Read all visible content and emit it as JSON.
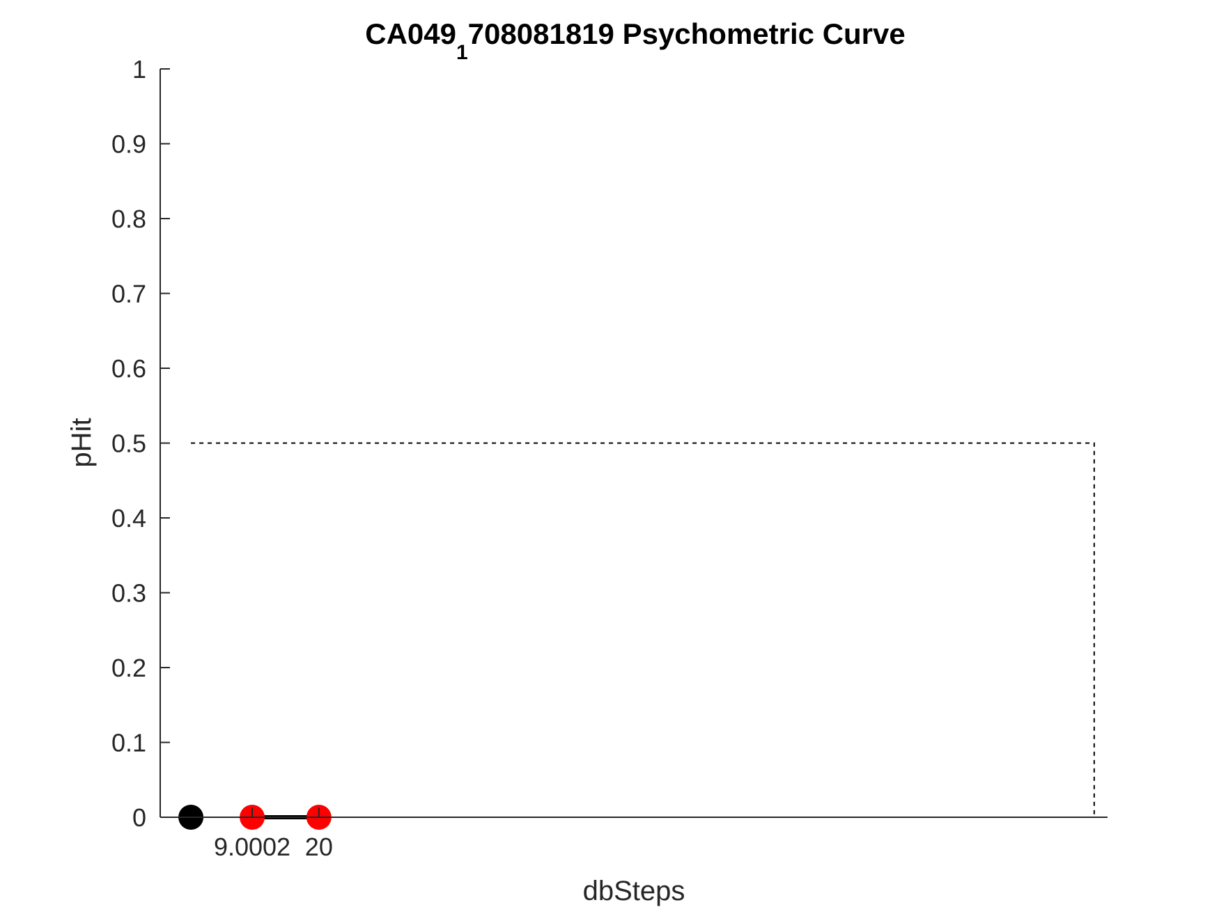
{
  "chart_data": {
    "type": "line",
    "title_main": "CA049",
    "title_subscript": "1",
    "title_rest": "708081819 Psychometric Curve",
    "xlabel": "dbSteps",
    "ylabel": "pHit",
    "xlim": [
      -6.16,
      150
    ],
    "ylim": [
      0,
      1
    ],
    "y_ticks": [
      0,
      0.1,
      0.2,
      0.3,
      0.4,
      0.5,
      0.6,
      0.7,
      0.8,
      0.9,
      1
    ],
    "y_tick_labels": [
      "0",
      "0.1",
      "0.2",
      "0.3",
      "0.4",
      "0.5",
      "0.6",
      "0.7",
      "0.8",
      "0.9",
      "1"
    ],
    "x_ticks": [
      9.0002,
      20
    ],
    "x_tick_labels": [
      "9.0002",
      "20"
    ],
    "grid": false,
    "series": [
      {
        "color": "#000000",
        "line": "solid",
        "marker": "circle",
        "x": [
          9.0002,
          20
        ],
        "y": [
          0,
          0
        ],
        "marker_colors": [
          "#ff0000",
          "#ff0000"
        ]
      },
      {
        "color": "#000000",
        "line": "none",
        "marker": "circle",
        "x": [
          -1.1
        ],
        "y": [
          0
        ],
        "marker_colors": [
          "#000000"
        ]
      }
    ],
    "threshold_line": {
      "color": "#000000",
      "line": "dashed",
      "x": [
        -1.1,
        147.8,
        147.8
      ],
      "y": [
        0.5,
        0.5,
        0
      ]
    }
  }
}
